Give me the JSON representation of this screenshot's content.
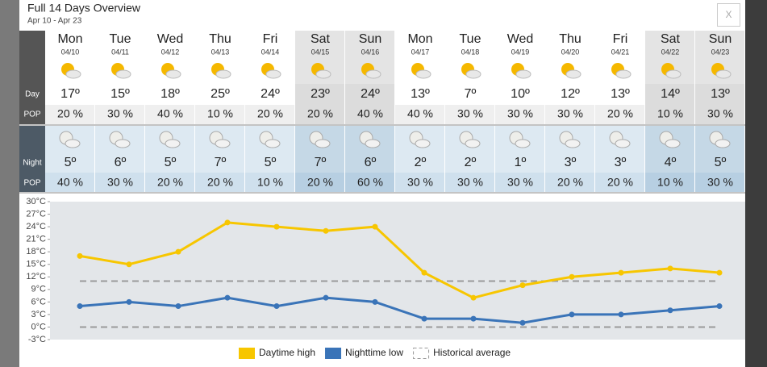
{
  "header": {
    "title": "Full 14 Days Overview",
    "subtitle": "Apr 10 - Apr 23",
    "close": "X"
  },
  "table": {
    "row_labels": {
      "day": "Day",
      "day_pop": "POP",
      "night": "Night",
      "night_pop": "POP"
    },
    "days": [
      {
        "name": "Mon",
        "date": "04/10",
        "day_temp": "17º",
        "day_pop": "20 %",
        "night_temp": "5º",
        "night_pop": "40 %"
      },
      {
        "name": "Tue",
        "date": "04/11",
        "day_temp": "15º",
        "day_pop": "30 %",
        "night_temp": "6º",
        "night_pop": "30 %"
      },
      {
        "name": "Wed",
        "date": "04/12",
        "day_temp": "18º",
        "day_pop": "40 %",
        "night_temp": "5º",
        "night_pop": "20 %"
      },
      {
        "name": "Thu",
        "date": "04/13",
        "day_temp": "25º",
        "day_pop": "10 %",
        "night_temp": "7º",
        "night_pop": "20 %"
      },
      {
        "name": "Fri",
        "date": "04/14",
        "day_temp": "24º",
        "day_pop": "20 %",
        "night_temp": "5º",
        "night_pop": "10 %"
      },
      {
        "name": "Sat",
        "date": "04/15",
        "day_temp": "23º",
        "day_pop": "20 %",
        "night_temp": "7º",
        "night_pop": "20 %"
      },
      {
        "name": "Sun",
        "date": "04/16",
        "day_temp": "24º",
        "day_pop": "40 %",
        "night_temp": "6º",
        "night_pop": "60 %"
      },
      {
        "name": "Mon",
        "date": "04/17",
        "day_temp": "13º",
        "day_pop": "40 %",
        "night_temp": "2º",
        "night_pop": "30 %"
      },
      {
        "name": "Tue",
        "date": "04/18",
        "day_temp": "7º",
        "day_pop": "30 %",
        "night_temp": "2º",
        "night_pop": "30 %"
      },
      {
        "name": "Wed",
        "date": "04/19",
        "day_temp": "10º",
        "day_pop": "30 %",
        "night_temp": "1º",
        "night_pop": "30 %"
      },
      {
        "name": "Thu",
        "date": "04/20",
        "day_temp": "12º",
        "day_pop": "30 %",
        "night_temp": "3º",
        "night_pop": "20 %"
      },
      {
        "name": "Fri",
        "date": "04/21",
        "day_temp": "13º",
        "day_pop": "20 %",
        "night_temp": "3º",
        "night_pop": "20 %"
      },
      {
        "name": "Sat",
        "date": "04/22",
        "day_temp": "14º",
        "day_pop": "10 %",
        "night_temp": "4º",
        "night_pop": "10 %"
      },
      {
        "name": "Sun",
        "date": "04/23",
        "day_temp": "13º",
        "day_pop": "30 %",
        "night_temp": "5º",
        "night_pop": "30 %"
      }
    ]
  },
  "chart_data": {
    "type": "line",
    "ylim": [
      -3,
      30
    ],
    "yticks": [
      {
        "value": 30,
        "label": "30°C"
      },
      {
        "value": 27,
        "label": "27°C"
      },
      {
        "value": 24,
        "label": "24°C"
      },
      {
        "value": 21,
        "label": "21°C"
      },
      {
        "value": 18,
        "label": "18°C"
      },
      {
        "value": 15,
        "label": "15°C"
      },
      {
        "value": 12,
        "label": "12°C"
      },
      {
        "value": 9,
        "label": "9°C"
      },
      {
        "value": 6,
        "label": "6°C"
      },
      {
        "value": 3,
        "label": "3°C"
      },
      {
        "value": 0,
        "label": "0°C"
      },
      {
        "value": -3,
        "label": "-3°C"
      }
    ],
    "series": [
      {
        "name": "Daytime high",
        "color": "#f7c600",
        "values": [
          17,
          15,
          18,
          25,
          24,
          23,
          24,
          13,
          7,
          10,
          12,
          13,
          14,
          13
        ]
      },
      {
        "name": "Nighttime low",
        "color": "#3a74b8",
        "values": [
          5,
          6,
          5,
          7,
          5,
          7,
          6,
          2,
          2,
          1,
          3,
          3,
          4,
          5
        ]
      }
    ],
    "reference": {
      "name": "Historical average",
      "color": "#9a9a9a",
      "values": [
        11,
        0
      ]
    }
  }
}
